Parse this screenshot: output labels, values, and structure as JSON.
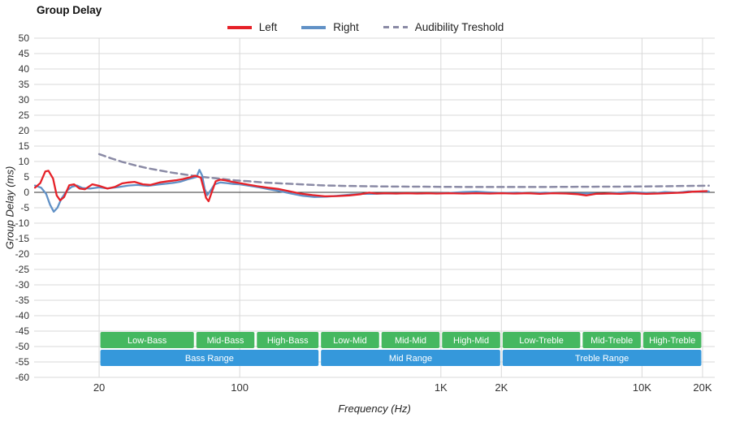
{
  "title": "Group Delay",
  "chart_data": {
    "type": "line",
    "title": "Group Delay",
    "xlabel": "Frequency (Hz)",
    "ylabel": "Group Delay (ms)",
    "xscale": "log",
    "xlim": [
      9.5,
      23000
    ],
    "ylim": [
      -60,
      50
    ],
    "ytick_step": 5,
    "grid": true,
    "legend_position": "top",
    "xticks": [
      {
        "v": 20,
        "label": "20"
      },
      {
        "v": 100,
        "label": "100"
      },
      {
        "v": 1000,
        "label": "1K"
      },
      {
        "v": 2000,
        "label": "2K"
      },
      {
        "v": 10000,
        "label": "10K"
      },
      {
        "v": 20000,
        "label": "20K"
      }
    ],
    "colors": {
      "grid": "#d9d9d9",
      "zero_line": "#333333",
      "tick_text": "#333333",
      "band_green": "#45b860",
      "band_blue": "#3598db",
      "band_text": "#ffffff",
      "background": "#ffffff"
    },
    "series": [
      {
        "name": "Left",
        "color": "#e62128",
        "width": 2.3,
        "points": [
          [
            9.6,
            1.5
          ],
          [
            10.2,
            3
          ],
          [
            10.8,
            6.8
          ],
          [
            11.2,
            7
          ],
          [
            11.8,
            4.5
          ],
          [
            12.3,
            -1
          ],
          [
            12.8,
            -2.6
          ],
          [
            13.4,
            -1.5
          ],
          [
            14.2,
            2.3
          ],
          [
            15,
            2.6
          ],
          [
            16,
            1.2
          ],
          [
            17,
            1
          ],
          [
            18.5,
            2.6
          ],
          [
            20,
            2.1
          ],
          [
            22,
            1.2
          ],
          [
            24,
            1.8
          ],
          [
            26,
            2.9
          ],
          [
            28,
            3.2
          ],
          [
            30,
            3.4
          ],
          [
            33,
            2.6
          ],
          [
            36,
            2.4
          ],
          [
            40,
            3.2
          ],
          [
            44,
            3.6
          ],
          [
            48,
            3.9
          ],
          [
            52,
            4.3
          ],
          [
            56,
            4.8
          ],
          [
            60,
            5.4
          ],
          [
            64,
            4.8
          ],
          [
            66,
            1.5
          ],
          [
            68,
            -1.8
          ],
          [
            70,
            -2.9
          ],
          [
            73,
            0.5
          ],
          [
            76,
            3.6
          ],
          [
            80,
            4.1
          ],
          [
            85,
            3.9
          ],
          [
            92,
            3.4
          ],
          [
            100,
            3
          ],
          [
            110,
            2.5
          ],
          [
            122,
            2
          ],
          [
            138,
            1.5
          ],
          [
            155,
            1.1
          ],
          [
            175,
            0.4
          ],
          [
            200,
            -0.4
          ],
          [
            230,
            -0.9
          ],
          [
            265,
            -1.3
          ],
          [
            305,
            -1.2
          ],
          [
            350,
            -1
          ],
          [
            400,
            -0.6
          ],
          [
            440,
            -0.1
          ],
          [
            480,
            -0.4
          ],
          [
            530,
            -0.3
          ],
          [
            600,
            -0.4
          ],
          [
            680,
            -0.3
          ],
          [
            760,
            -0.4
          ],
          [
            850,
            -0.3
          ],
          [
            950,
            -0.4
          ],
          [
            1100,
            -0.3
          ],
          [
            1300,
            -0.4
          ],
          [
            1500,
            -0.3
          ],
          [
            1750,
            -0.4
          ],
          [
            2000,
            -0.3
          ],
          [
            2300,
            -0.4
          ],
          [
            2700,
            -0.3
          ],
          [
            3100,
            -0.5
          ],
          [
            3600,
            -0.3
          ],
          [
            4200,
            -0.4
          ],
          [
            4800,
            -0.6
          ],
          [
            5300,
            -1
          ],
          [
            5900,
            -0.5
          ],
          [
            6800,
            -0.4
          ],
          [
            7800,
            -0.5
          ],
          [
            9000,
            -0.3
          ],
          [
            10500,
            -0.5
          ],
          [
            12000,
            -0.4
          ],
          [
            14000,
            -0.2
          ],
          [
            16000,
            -0.1
          ],
          [
            18000,
            0.2
          ],
          [
            21000,
            0.4
          ]
        ]
      },
      {
        "name": "Right",
        "color": "#6191c6",
        "width": 2.3,
        "points": [
          [
            9.6,
            2.2
          ],
          [
            10.3,
            1.5
          ],
          [
            10.9,
            -0.5
          ],
          [
            11.4,
            -4
          ],
          [
            11.9,
            -6.3
          ],
          [
            12.4,
            -5
          ],
          [
            13,
            -2
          ],
          [
            13.8,
            0.5
          ],
          [
            14.6,
            1.8
          ],
          [
            15.5,
            2.2
          ],
          [
            16.5,
            1.4
          ],
          [
            18,
            1.2
          ],
          [
            20,
            1.6
          ],
          [
            22,
            1.3
          ],
          [
            25,
            1.7
          ],
          [
            28,
            2.2
          ],
          [
            31,
            2.4
          ],
          [
            35,
            2.1
          ],
          [
            39,
            2.5
          ],
          [
            43,
            2.8
          ],
          [
            47,
            3.1
          ],
          [
            51,
            3.5
          ],
          [
            55,
            4.2
          ],
          [
            58,
            4.6
          ],
          [
            61,
            5
          ],
          [
            63,
            7.3
          ],
          [
            65,
            5.5
          ],
          [
            67,
            1
          ],
          [
            69,
            -0.9
          ],
          [
            72,
            0.8
          ],
          [
            75,
            2.6
          ],
          [
            80,
            3.2
          ],
          [
            86,
            3
          ],
          [
            93,
            2.7
          ],
          [
            100,
            2.6
          ],
          [
            112,
            2.1
          ],
          [
            125,
            1.6
          ],
          [
            140,
            1
          ],
          [
            158,
            0.4
          ],
          [
            180,
            -0.4
          ],
          [
            205,
            -1.1
          ],
          [
            235,
            -1.5
          ],
          [
            270,
            -1.4
          ],
          [
            310,
            -1.1
          ],
          [
            360,
            -0.7
          ],
          [
            410,
            -0.5
          ],
          [
            460,
            -0.5
          ],
          [
            520,
            -0.4
          ],
          [
            600,
            -0.4
          ],
          [
            700,
            -0.3
          ],
          [
            800,
            -0.4
          ],
          [
            950,
            -0.3
          ],
          [
            1100,
            -0.2
          ],
          [
            1300,
            0.1
          ],
          [
            1500,
            0.2
          ],
          [
            1700,
            0
          ],
          [
            2000,
            -0.2
          ],
          [
            2400,
            -0.1
          ],
          [
            2800,
            -0.3
          ],
          [
            3300,
            -0.1
          ],
          [
            3900,
            -0.3
          ],
          [
            4600,
            -0.4
          ],
          [
            5400,
            -0.3
          ],
          [
            6300,
            -0.5
          ],
          [
            7400,
            -0.2
          ],
          [
            8600,
            0.1
          ],
          [
            10000,
            -0.1
          ],
          [
            11500,
            -0.3
          ],
          [
            13000,
            0.1
          ],
          [
            15000,
            -0.1
          ],
          [
            17000,
            0.3
          ],
          [
            19000,
            0.2
          ],
          [
            21500,
            0.3
          ]
        ]
      },
      {
        "name": "Audibility Treshold",
        "color": "#8a8aa5",
        "width": 2.5,
        "dash": "8 5",
        "points": [
          [
            20,
            12.4
          ],
          [
            23,
            11
          ],
          [
            26,
            9.9
          ],
          [
            30,
            8.8
          ],
          [
            35,
            7.8
          ],
          [
            40,
            7.1
          ],
          [
            46,
            6.4
          ],
          [
            53,
            5.8
          ],
          [
            60,
            5.3
          ],
          [
            70,
            4.8
          ],
          [
            80,
            4.4
          ],
          [
            95,
            3.9
          ],
          [
            110,
            3.6
          ],
          [
            130,
            3.2
          ],
          [
            160,
            2.9
          ],
          [
            200,
            2.6
          ],
          [
            250,
            2.3
          ],
          [
            320,
            2.1
          ],
          [
            400,
            2
          ],
          [
            550,
            1.9
          ],
          [
            750,
            1.85
          ],
          [
            1000,
            1.8
          ],
          [
            1500,
            1.75
          ],
          [
            2000,
            1.75
          ],
          [
            3000,
            1.75
          ],
          [
            4500,
            1.8
          ],
          [
            7000,
            1.85
          ],
          [
            10000,
            1.9
          ],
          [
            14000,
            2
          ],
          [
            18000,
            2.1
          ],
          [
            21500,
            2.15
          ]
        ]
      }
    ],
    "bands": {
      "sub": [
        {
          "label": "Low-Bass",
          "from": 20,
          "to": 60
        },
        {
          "label": "Mid-Bass",
          "from": 60,
          "to": 120
        },
        {
          "label": "High-Bass",
          "from": 120,
          "to": 250
        },
        {
          "label": "Low-Mid",
          "from": 250,
          "to": 500
        },
        {
          "label": "Mid-Mid",
          "from": 500,
          "to": 1000
        },
        {
          "label": "High-Mid",
          "from": 1000,
          "to": 2000
        },
        {
          "label": "Low-Treble",
          "from": 2000,
          "to": 5000
        },
        {
          "label": "Mid-Treble",
          "from": 5000,
          "to": 10000
        },
        {
          "label": "High-Treble",
          "from": 10000,
          "to": 20000
        }
      ],
      "main": [
        {
          "label": "Bass Range",
          "from": 20,
          "to": 250
        },
        {
          "label": "Mid Range",
          "from": 250,
          "to": 2000
        },
        {
          "label": "Treble Range",
          "from": 2000,
          "to": 20000
        }
      ]
    }
  }
}
